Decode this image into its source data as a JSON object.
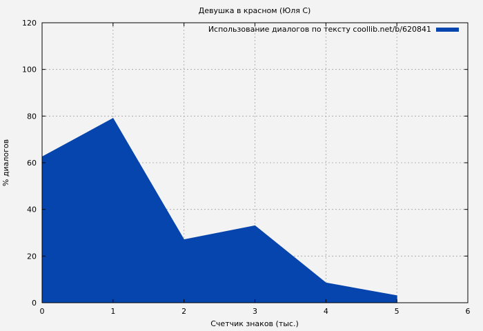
{
  "chart_data": {
    "type": "area",
    "title": "Девушка в красном (Юля С)",
    "xlabel": "Счетчик знаков (тыс.)",
    "ylabel": "% диалогов",
    "xlim": [
      0,
      6
    ],
    "ylim": [
      0,
      120
    ],
    "x_ticks": [
      "0",
      "1",
      "2",
      "3",
      "4",
      "5",
      "6"
    ],
    "y_ticks": [
      "0",
      "20",
      "40",
      "60",
      "80",
      "100",
      "120"
    ],
    "grid": true,
    "legend_position": "top-right",
    "series": [
      {
        "name": "Использование диалогов по тексту coollib.net/b/620841",
        "color": "#0645ad",
        "x": [
          0,
          1,
          2,
          3,
          4,
          5
        ],
        "values": [
          62.5,
          79,
          27,
          33,
          8.5,
          3
        ]
      }
    ]
  }
}
